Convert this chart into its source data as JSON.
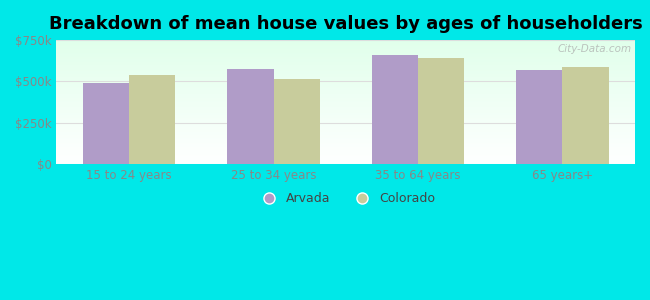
{
  "title": "Breakdown of mean house values by ages of householders",
  "categories": [
    "15 to 24 years",
    "25 to 34 years",
    "35 to 64 years",
    "65 years+"
  ],
  "arvada_values": [
    490000,
    575000,
    660000,
    570000
  ],
  "colorado_values": [
    540000,
    515000,
    640000,
    585000
  ],
  "arvada_color": "#b09cc8",
  "colorado_color": "#c8cc9c",
  "ylim": [
    0,
    750000
  ],
  "yticks": [
    0,
    250000,
    500000,
    750000
  ],
  "ytick_labels": [
    "$0",
    "$250k",
    "$500k",
    "$750k"
  ],
  "background_color": "#00e8e8",
  "legend_labels": [
    "Arvada",
    "Colorado"
  ],
  "title_fontsize": 13,
  "bar_width": 0.32,
  "watermark": "City-Data.com",
  "tick_color": "#888888",
  "grid_color": "#dddddd"
}
